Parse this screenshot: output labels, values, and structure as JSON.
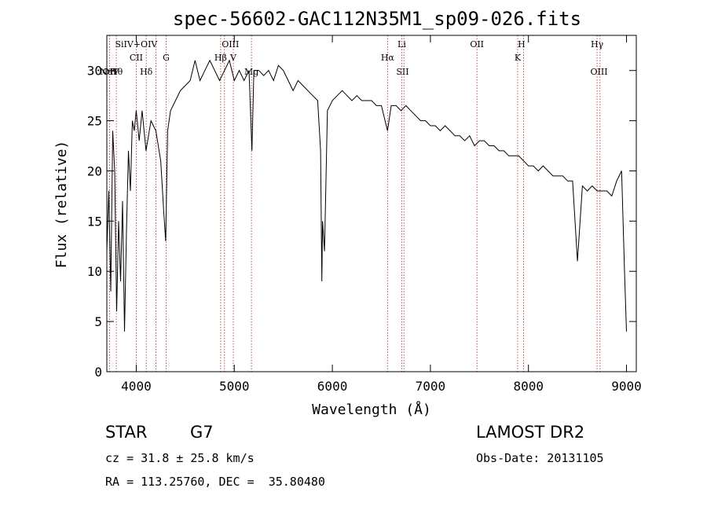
{
  "title": "spec-56602-GAC112N35M1_sp09-026.fits",
  "info": {
    "object_class": "STAR",
    "subclass": "G7",
    "survey": "LAMOST DR2",
    "cz": "cz = 31.8 ± 25.8 km/s",
    "obs_date": "Obs-Date: 20131105",
    "radec": "RA = 113.25760, DEC =  35.80480"
  },
  "chart_data": {
    "type": "line",
    "title": "spec-56602-GAC112N35M1_sp09-026.fits",
    "xlabel": "Wavelength (Å)",
    "ylabel": "Flux (relative)",
    "xlim": [
      3700,
      9100
    ],
    "ylim": [
      0,
      33.5
    ],
    "x_ticks": [
      4000,
      5000,
      6000,
      7000,
      8000,
      9000
    ],
    "y_ticks": [
      0,
      5,
      10,
      15,
      20,
      25,
      30
    ],
    "grid": false,
    "series": [
      {
        "x": [
          3700,
          3720,
          3740,
          3760,
          3780,
          3800,
          3820,
          3840,
          3860,
          3880,
          3900,
          3920,
          3940,
          3960,
          3980,
          4000,
          4030,
          4060,
          4100,
          4150,
          4200,
          4250,
          4280,
          4300,
          4320,
          4350,
          4400,
          4450,
          4500,
          4550,
          4600,
          4650,
          4700,
          4750,
          4800,
          4850,
          4900,
          4950,
          5000,
          5050,
          5100,
          5150,
          5180,
          5200,
          5250,
          5300,
          5350,
          5400,
          5450,
          5500,
          5550,
          5600,
          5650,
          5700,
          5750,
          5800,
          5850,
          5880,
          5893,
          5900,
          5920,
          5950,
          6000,
          6050,
          6100,
          6150,
          6200,
          6250,
          6300,
          6350,
          6400,
          6450,
          6500,
          6563,
          6600,
          6650,
          6700,
          6750,
          6800,
          6850,
          6900,
          6950,
          7000,
          7050,
          7100,
          7150,
          7200,
          7250,
          7300,
          7350,
          7400,
          7450,
          7500,
          7550,
          7600,
          7650,
          7700,
          7750,
          7800,
          7850,
          7900,
          7950,
          8000,
          8050,
          8100,
          8150,
          8200,
          8250,
          8300,
          8350,
          8400,
          8450,
          8500,
          8550,
          8600,
          8650,
          8700,
          8750,
          8800,
          8850,
          8900,
          8950,
          8980,
          9000
        ],
        "y": [
          12,
          18,
          8,
          24,
          20,
          6,
          15,
          9,
          17,
          4,
          14,
          22,
          18,
          25,
          24,
          26,
          23,
          26,
          22,
          25,
          24,
          21,
          16,
          13,
          24,
          26,
          27,
          28,
          28.5,
          29,
          31,
          29,
          30,
          31,
          30,
          29,
          30,
          31,
          29,
          30,
          29,
          30,
          22,
          30,
          30,
          29.5,
          30,
          29,
          30.5,
          30,
          29,
          28,
          29,
          28.5,
          28,
          27.5,
          27,
          22,
          9,
          15,
          12,
          26,
          27,
          27.5,
          28,
          27.5,
          27,
          27.5,
          27,
          27,
          27,
          26.5,
          26.5,
          24,
          26.5,
          26.5,
          26,
          26.5,
          26,
          25.5,
          25,
          25,
          24.5,
          24.5,
          24,
          24.5,
          24,
          23.5,
          23.5,
          23,
          23.5,
          22.5,
          23,
          23,
          22.5,
          22.5,
          22,
          22,
          21.5,
          21.5,
          21.5,
          21,
          20.5,
          20.5,
          20,
          20.5,
          20,
          19.5,
          19.5,
          19.5,
          19,
          19,
          11,
          18.5,
          18,
          18.5,
          18,
          18,
          18,
          17.5,
          19,
          20,
          10,
          4
        ]
      }
    ],
    "annotations": [
      {
        "label": "NeV",
        "x": 3725,
        "row": 3
      },
      {
        "label": "OII",
        "x": 3727,
        "row": 3
      },
      {
        "label": "Hθ",
        "x": 3797,
        "row": 3
      },
      {
        "label": "SiIV+OIV",
        "x": 4000,
        "row": 1
      },
      {
        "label": "CII",
        "x": 4000,
        "row": 2
      },
      {
        "label": "Hδ",
        "x": 4102,
        "row": 3
      },
      {
        "label": "G",
        "x": 4305,
        "row": 2
      },
      {
        "label": "OIII",
        "x": 4960,
        "row": 1
      },
      {
        "label": "Hβ",
        "x": 4861,
        "row": 2
      },
      {
        "label": "V",
        "x": 4990,
        "row": 2
      },
      {
        "label": "Mg",
        "x": 5175,
        "row": 3
      },
      {
        "label": "Li",
        "x": 6708,
        "row": 1
      },
      {
        "label": "Hα",
        "x": 6563,
        "row": 2
      },
      {
        "label": "SII",
        "x": 6716,
        "row": 3
      },
      {
        "label": "OII",
        "x": 7475,
        "row": 1
      },
      {
        "label": "H",
        "x": 7930,
        "row": 1
      },
      {
        "label": "K",
        "x": 7890,
        "row": 2
      },
      {
        "label": "Hγ",
        "x": 8700,
        "row": 1
      },
      {
        "label": "OIII",
        "x": 8720,
        "row": 3
      }
    ],
    "lines": [
      3727,
      3797,
      4000,
      4102,
      4200,
      4305,
      4861,
      4900,
      4990,
      5175,
      6563,
      6708,
      6730,
      7475,
      7890,
      7950,
      8700,
      8730
    ]
  }
}
